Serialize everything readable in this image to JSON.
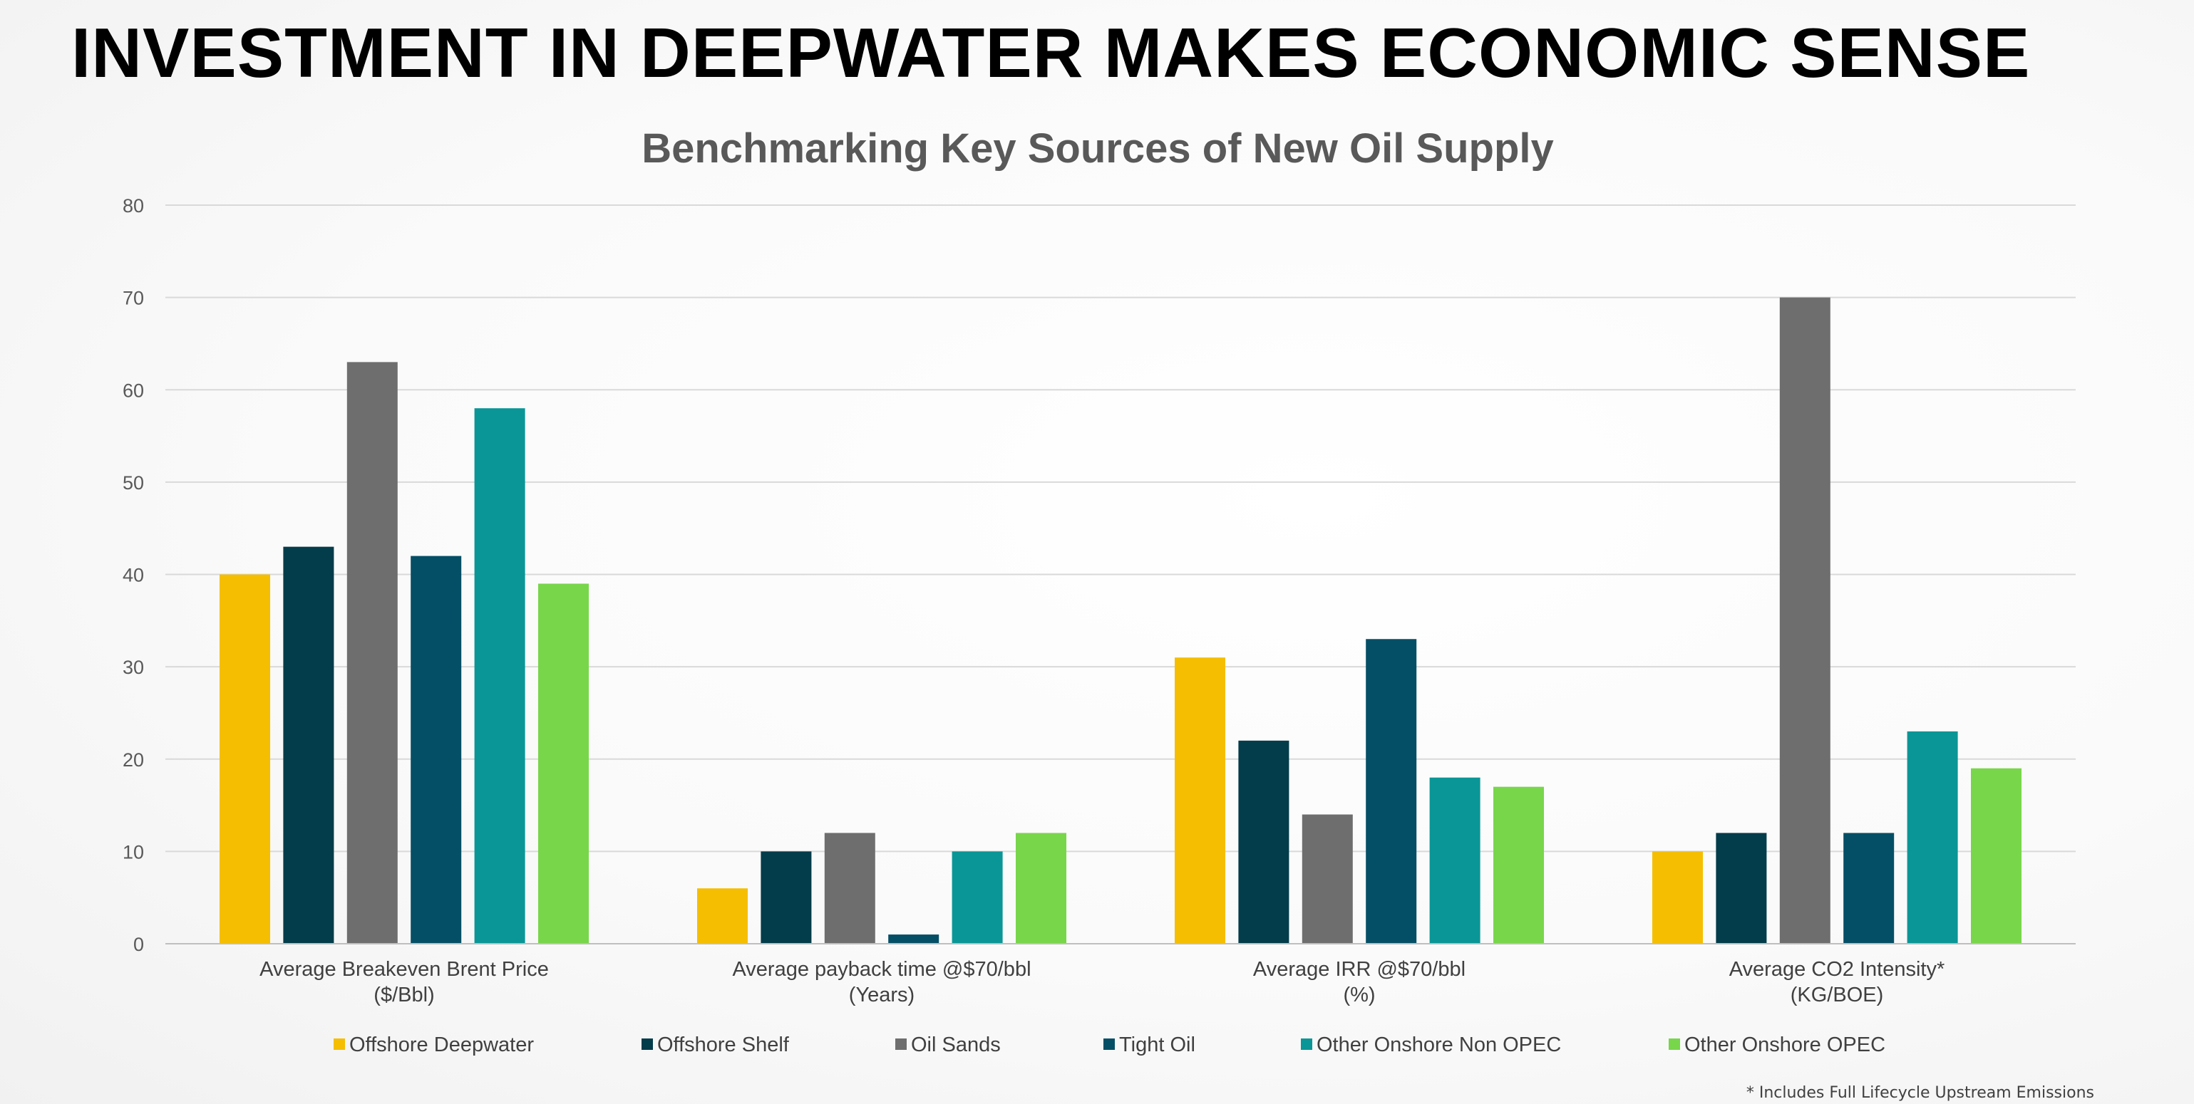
{
  "slide": {
    "title": "INVESTMENT IN DEEPWATER MAKES ECONOMIC SENSE",
    "footnote": "* Includes Full Lifecycle Upstream Emissions"
  },
  "chart_data": {
    "type": "bar",
    "title": "Benchmarking Key Sources of New Oil Supply",
    "xlabel": "",
    "ylabel": "",
    "ylim": [
      0,
      80
    ],
    "yticks": [
      0,
      10,
      20,
      30,
      40,
      50,
      60,
      70,
      80
    ],
    "grid": true,
    "legend_position": "bottom",
    "categories": [
      [
        "Average Breakeven Brent Price",
        "($/Bbl)"
      ],
      [
        "Average payback time @$70/bbl",
        "(Years)"
      ],
      [
        "Average IRR @$70/bbl",
        "(%)"
      ],
      [
        "Average CO2 Intensity*",
        "(KG/BOE)"
      ]
    ],
    "series": [
      {
        "name": "Offshore Deepwater",
        "color": "#F5BE00",
        "values": [
          40,
          6,
          31,
          10
        ]
      },
      {
        "name": "Offshore Shelf",
        "color": "#033C4A",
        "values": [
          43,
          10,
          22,
          12
        ]
      },
      {
        "name": "Oil Sands",
        "color": "#6E6E6E",
        "values": [
          63,
          12,
          14,
          70
        ]
      },
      {
        "name": "Tight Oil",
        "color": "#054F66",
        "values": [
          42,
          1,
          33,
          12
        ]
      },
      {
        "name": "Other Onshore Non OPEC",
        "color": "#0A9696",
        "values": [
          58,
          10,
          18,
          23
        ]
      },
      {
        "name": "Other Onshore OPEC",
        "color": "#78D64A",
        "values": [
          39,
          12,
          17,
          19
        ]
      }
    ]
  }
}
